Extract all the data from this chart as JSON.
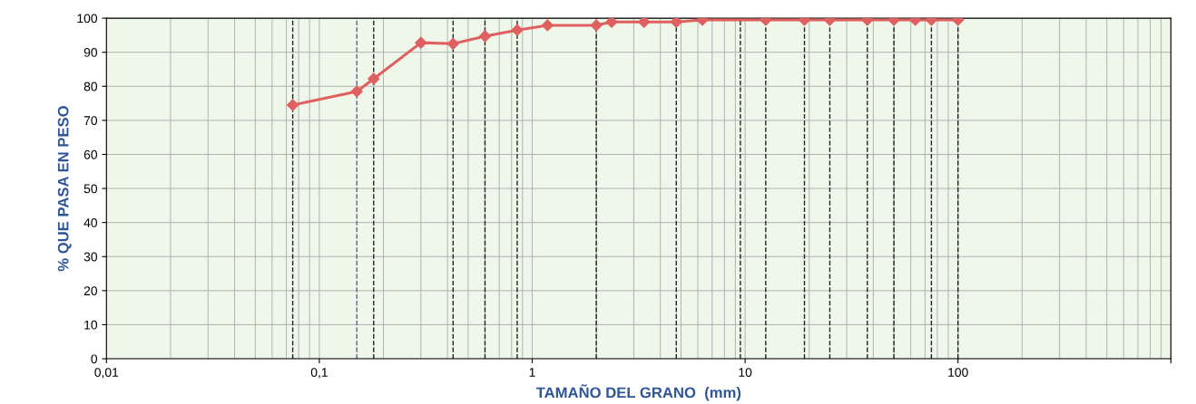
{
  "chart_data": {
    "type": "line",
    "xlabel": "TAMAÑO DEL GRANO  (mm)",
    "ylabel": "% QUE PASA EN PESO",
    "x": [
      0.075,
      0.15,
      0.18,
      0.3,
      0.425,
      0.6,
      0.85,
      1.18,
      2,
      2.36,
      3.35,
      4.75,
      6.3,
      12.5,
      19,
      25,
      37.5,
      50,
      63,
      75,
      100
    ],
    "series": [
      {
        "color": "#e06060",
        "values": [
          74.5,
          78.5,
          82.2,
          92.8,
          92.5,
          94.7,
          96.5,
          97.9,
          97.9,
          98.9,
          98.9,
          98.9,
          99.5,
          99.5,
          99.5,
          99.5,
          99.5,
          99.5,
          99.5,
          99.5,
          99.5
        ]
      }
    ],
    "log": "x",
    "xlim": [
      0.01,
      1000
    ],
    "ylim": [
      0,
      100
    ],
    "xticks": [
      {
        "value": 0.01,
        "label": "0,01"
      },
      {
        "value": 0.1,
        "label": "0,1"
      },
      1,
      10,
      100,
      {
        "value": 1000,
        "label": null
      }
    ],
    "yticks": [
      0,
      10,
      20,
      30,
      40,
      50,
      60,
      70,
      80,
      90,
      100
    ],
    "grid": true,
    "marker": "diamond",
    "line_style": "solid",
    "legend": false,
    "ref_lines": [
      {
        "axis": "x",
        "value": 0.075,
        "color": "#222222",
        "line_style": "dashed"
      },
      {
        "axis": "x",
        "value": 0.15,
        "color": "#4a6a9a",
        "line_style": "dashed"
      },
      {
        "axis": "x",
        "value": 0.18,
        "color": "#222222",
        "line_style": "dashed"
      },
      {
        "axis": "x",
        "value": 0.425,
        "color": "#222222",
        "line_style": "dashed"
      },
      {
        "axis": "x",
        "value": 0.6,
        "color": "#222222",
        "line_style": "dashed"
      },
      {
        "axis": "x",
        "value": 0.85,
        "color": "#222222",
        "line_style": "dashed"
      },
      {
        "axis": "x",
        "value": 2,
        "color": "#222222",
        "line_style": "dashed"
      },
      {
        "axis": "x",
        "value": 4.75,
        "color": "#222222",
        "line_style": "dashed"
      },
      {
        "axis": "x",
        "value": 9.5,
        "color": "#222222",
        "line_style": "dashed"
      },
      {
        "axis": "x",
        "value": 12.5,
        "color": "#222222",
        "line_style": "dashed"
      },
      {
        "axis": "x",
        "value": 19,
        "color": "#222222",
        "line_style": "dashed"
      },
      {
        "axis": "x",
        "value": 25,
        "color": "#222222",
        "line_style": "dashed"
      },
      {
        "axis": "x",
        "value": 37.5,
        "color": "#222222",
        "line_style": "dashed"
      },
      {
        "axis": "x",
        "value": 50,
        "color": "#222222",
        "line_style": "dashed"
      },
      {
        "axis": "x",
        "value": 75,
        "color": "#222222",
        "line_style": "dashed"
      },
      {
        "axis": "x",
        "value": 100,
        "color": "#222222",
        "line_style": "dashed"
      }
    ]
  }
}
